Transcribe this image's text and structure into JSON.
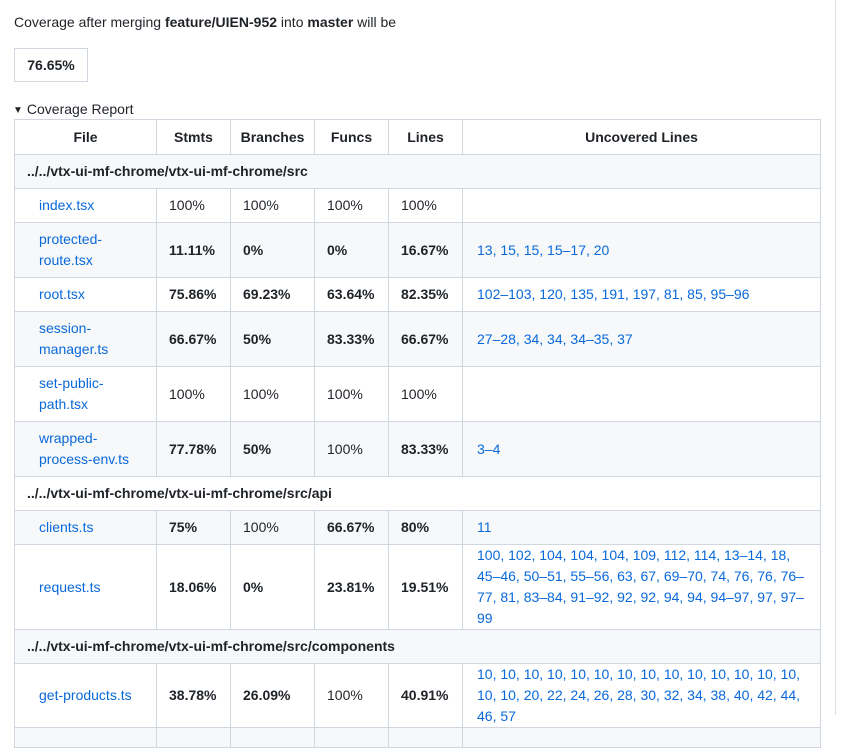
{
  "intro": {
    "prefix": "Coverage after merging ",
    "branch": "feature/UIEN-952",
    "middle": " into ",
    "target": "master",
    "suffix": " will be"
  },
  "coverage_percent": "76.65%",
  "report": {
    "summary": "Coverage Report",
    "headers": [
      "File",
      "Stmts",
      "Branches",
      "Funcs",
      "Lines",
      "Uncovered Lines"
    ],
    "groups": [
      {
        "dir": "../../vtx-ui-mf-chrome/vtx-ui-mf-chrome/src",
        "rows": [
          {
            "file_1": "index.tsx",
            "file_2": "",
            "stmts": "100%",
            "branches": "100%",
            "funcs": "100%",
            "lines": "100%",
            "uncovered": ""
          },
          {
            "file_1": "protected-",
            "file_2": "route.tsx",
            "stmts": "11.11%",
            "branches": "0%",
            "funcs": "0%",
            "lines": "16.67%",
            "uncovered": "13, 15, 15, 15–17, 20"
          },
          {
            "file_1": "root.tsx",
            "file_2": "",
            "stmts": "75.86%",
            "branches": "69.23%",
            "funcs": "63.64%",
            "lines": "82.35%",
            "uncovered": "102–103, 120, 135, 191, 197, 81, 85, 95–96"
          },
          {
            "file_1": "session-",
            "file_2": "manager.ts",
            "stmts": "66.67%",
            "branches": "50%",
            "funcs": "83.33%",
            "lines": "66.67%",
            "uncovered": "27–28, 34, 34, 34–35, 37"
          },
          {
            "file_1": "set-public-",
            "file_2": "path.tsx",
            "stmts": "100%",
            "branches": "100%",
            "funcs": "100%",
            "lines": "100%",
            "uncovered": ""
          },
          {
            "file_1": "wrapped-",
            "file_2": "process-env.ts",
            "stmts": "77.78%",
            "branches": "50%",
            "funcs": "100%",
            "lines": "83.33%",
            "uncovered": "3–4"
          }
        ]
      },
      {
        "dir": "../../vtx-ui-mf-chrome/vtx-ui-mf-chrome/src/api",
        "rows": [
          {
            "file_1": "clients.ts",
            "file_2": "",
            "stmts": "75%",
            "branches": "100%",
            "funcs": "66.67%",
            "lines": "80%",
            "uncovered": "11"
          },
          {
            "file_1": "request.ts",
            "file_2": "",
            "stmts": "18.06%",
            "branches": "0%",
            "funcs": "23.81%",
            "lines": "19.51%",
            "uncovered": "100, 102, 104, 104, 104, 109, 112, 114, 13–14, 18, 45–46, 50–51, 55–56, 63, 67, 69–70, 74, 76, 76, 76–77, 81, 83–84, 91–92, 92, 92, 94, 94, 94–97, 97, 97–99"
          }
        ]
      },
      {
        "dir": "../../vtx-ui-mf-chrome/vtx-ui-mf-chrome/src/components",
        "rows": [
          {
            "file_1": "get-products.ts",
            "file_2": "",
            "stmts": "38.78%",
            "branches": "26.09%",
            "funcs": "100%",
            "lines": "40.91%",
            "uncovered": "10, 10, 10, 10, 10, 10, 10, 10, 10, 10, 10, 10, 10, 10, 10, 10, 20, 22, 24, 26, 28, 30, 32, 34, 38, 40, 42, 44, 46, 57"
          }
        ]
      }
    ]
  }
}
